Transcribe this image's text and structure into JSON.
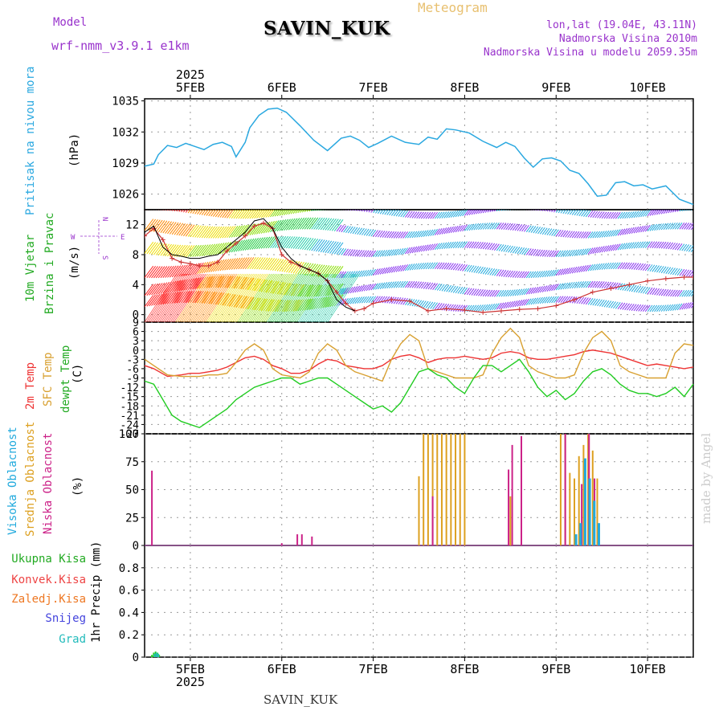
{
  "header": {
    "model_label": "Model",
    "model_name": "wrf-nmm_v3.9.1  e1km",
    "station": "SAVIN_KUK",
    "product": "Meteogram",
    "coords": "lon,lat (19.04E, 43.11N)",
    "elevation": "Nadmorska Visina 2010m",
    "model_elevation": "Nadmorska Visina u modelu 2059.35m",
    "credit": "made by Angel",
    "footer_station": "SAVIN_KUK"
  },
  "colors": {
    "pressure": "#2aa8e0",
    "temp2m": "#ee3333",
    "sfc": "#d8a030",
    "dew": "#22cc22",
    "wind_series": "#cc3333",
    "purple": "#9933cc",
    "high_cloud": "#22aadd",
    "mid_cloud": "#dda020",
    "low_cloud": "#cc2288",
    "conv_rain": "#ee4444",
    "frz_rain": "#ee7722",
    "snow": "#4444dd",
    "graupel": "#22bbbb"
  },
  "chart_data": [
    {
      "type": "line",
      "panel": "pressure",
      "ylabel_lines": [
        "Pritisak na nivou mora",
        "(hPa)"
      ],
      "ylim": [
        1024.5,
        1035.2
      ],
      "yticks": [
        1026,
        1029,
        1032,
        1035
      ],
      "year_label": "2025",
      "x_labels": [
        "5FEB",
        "6FEB",
        "7FEB",
        "8FEB",
        "9FEB",
        "10FEB"
      ],
      "x_range_days": [
        4.5,
        10.5
      ],
      "series": [
        {
          "x": [
            4.5,
            4.6,
            4.65,
            4.75,
            4.85,
            4.95,
            5.05,
            5.15,
            5.25,
            5.35,
            5.45,
            5.5,
            5.6,
            5.65,
            5.75,
            5.85,
            5.95,
            6.05,
            6.2,
            6.35,
            6.5,
            6.65,
            6.75,
            6.85,
            6.95,
            7.05,
            7.2,
            7.35,
            7.5,
            7.6,
            7.7,
            7.8,
            7.9,
            8.05,
            8.2,
            8.35,
            8.45,
            8.55,
            8.65,
            8.75,
            8.85,
            8.95,
            9.05,
            9.15,
            9.25,
            9.35,
            9.45,
            9.55,
            9.65,
            9.75,
            9.85,
            9.95,
            10.05,
            10.2,
            10.35,
            10.5
          ],
          "values": [
            1028.7,
            1028.9,
            1029.8,
            1030.7,
            1030.5,
            1030.9,
            1030.6,
            1030.3,
            1030.8,
            1031.0,
            1030.6,
            1029.6,
            1031.0,
            1032.4,
            1033.6,
            1034.2,
            1034.3,
            1033.9,
            1032.6,
            1031.2,
            1030.2,
            1031.4,
            1031.6,
            1031.2,
            1030.5,
            1030.9,
            1031.6,
            1031.0,
            1030.8,
            1031.5,
            1031.3,
            1032.3,
            1032.2,
            1031.9,
            1031.1,
            1030.5,
            1031.0,
            1030.6,
            1029.5,
            1028.6,
            1029.4,
            1029.5,
            1029.2,
            1028.3,
            1028.0,
            1027.0,
            1025.8,
            1025.9,
            1027.1,
            1027.2,
            1026.8,
            1026.9,
            1026.5,
            1026.8,
            1025.5,
            1025.0
          ]
        }
      ]
    },
    {
      "type": "line",
      "panel": "wind",
      "ylabel_lines": [
        "10m Vjetar",
        "Brzina i Pravac",
        "(m/s)"
      ],
      "compass": {
        "n": "N",
        "w": "W",
        "e": "E",
        "s": "S"
      },
      "ylim": [
        -1,
        14
      ],
      "yticks": [
        0,
        4,
        8,
        12
      ],
      "series": [
        {
          "x": [
            4.5,
            4.6,
            4.7,
            4.8,
            4.9,
            5.0,
            5.1,
            5.2,
            5.3,
            5.4,
            5.5,
            5.6,
            5.7,
            5.8,
            5.9,
            6.0,
            6.1,
            6.2,
            6.3,
            6.4,
            6.5,
            6.6,
            6.7,
            6.8,
            6.9,
            7.0,
            7.2,
            7.4,
            7.6,
            7.8,
            8.0,
            8.2,
            8.4,
            8.6,
            8.8,
            9.0,
            9.2,
            9.4,
            9.6,
            9.8,
            10.0,
            10.2,
            10.4,
            10.5
          ],
          "values": [
            10.5,
            11.5,
            10.0,
            7.5,
            7.0,
            6.8,
            6.5,
            6.5,
            7.0,
            8.5,
            9.5,
            10.5,
            11.8,
            12.2,
            11.5,
            8.0,
            7.0,
            6.5,
            6.0,
            5.5,
            4.5,
            3.0,
            1.5,
            0.5,
            0.8,
            1.5,
            2.0,
            1.8,
            0.5,
            0.8,
            0.6,
            0.3,
            0.5,
            0.7,
            0.8,
            1.2,
            2.0,
            3.0,
            3.5,
            4.0,
            4.5,
            4.8,
            5.0,
            5.0
          ]
        },
        {
          "x": [
            4.5,
            4.6,
            4.7,
            4.8,
            4.9,
            5.0,
            5.1,
            5.2,
            5.3,
            5.4,
            5.5,
            5.6,
            5.7,
            5.8,
            5.9,
            6.0,
            6.1,
            6.2,
            6.3,
            6.4,
            6.5,
            6.6,
            6.7,
            6.8
          ],
          "values": [
            11.0,
            11.8,
            9.0,
            8.0,
            7.8,
            7.5,
            7.5,
            7.8,
            8.0,
            9.0,
            10.0,
            11.0,
            12.5,
            12.8,
            11.5,
            9.0,
            7.5,
            6.5,
            6.0,
            5.5,
            4.5,
            2.0,
            1.0,
            0.5
          ]
        }
      ]
    },
    {
      "type": "line",
      "panel": "temperature",
      "ylabel_lines": [
        "2m Temp",
        "SFC Temp",
        "dewpt Temp",
        "(C)"
      ],
      "ylim": [
        -27,
        9
      ],
      "yticks": [
        9,
        6,
        3,
        0,
        -3,
        -6,
        -9,
        -12,
        -15,
        -18,
        -21,
        -24,
        -27
      ],
      "series": [
        {
          "name": "2m Temp",
          "x": [
            4.5,
            4.6,
            4.75,
            4.9,
            5.0,
            5.1,
            5.2,
            5.3,
            5.4,
            5.5,
            5.6,
            5.7,
            5.8,
            5.9,
            6.0,
            6.1,
            6.2,
            6.3,
            6.4,
            6.5,
            6.6,
            6.7,
            6.8,
            6.9,
            7.0,
            7.1,
            7.2,
            7.3,
            7.4,
            7.5,
            7.6,
            7.7,
            7.8,
            7.9,
            8.0,
            8.1,
            8.2,
            8.3,
            8.4,
            8.5,
            8.6,
            8.7,
            8.8,
            8.9,
            9.0,
            9.1,
            9.2,
            9.3,
            9.4,
            9.5,
            9.6,
            9.7,
            9.8,
            9.9,
            10.0,
            10.1,
            10.2,
            10.3,
            10.4,
            10.5
          ],
          "values": [
            -5,
            -6,
            -8.5,
            -8,
            -7.5,
            -7.5,
            -7,
            -6.5,
            -5.5,
            -4,
            -2.5,
            -2,
            -3,
            -5,
            -6,
            -7.5,
            -7.5,
            -6.5,
            -4.5,
            -3,
            -3.5,
            -5,
            -5.5,
            -6,
            -6,
            -5,
            -3,
            -2,
            -1.5,
            -2.5,
            -4,
            -3,
            -2.5,
            -2.5,
            -2,
            -2.5,
            -3,
            -2.5,
            -1,
            -0.5,
            -1,
            -2.5,
            -3,
            -3,
            -2.5,
            -2,
            -1.5,
            -0.5,
            0,
            -0.5,
            -1,
            -2,
            -3,
            -4,
            -5,
            -4.5,
            -5,
            -5.5,
            -6,
            -5.5
          ]
        },
        {
          "name": "SFC Temp",
          "x": [
            4.5,
            4.6,
            4.75,
            4.9,
            5.0,
            5.1,
            5.2,
            5.3,
            5.4,
            5.5,
            5.6,
            5.7,
            5.8,
            5.9,
            6.0,
            6.1,
            6.2,
            6.3,
            6.4,
            6.5,
            6.6,
            6.7,
            6.8,
            6.9,
            7.0,
            7.1,
            7.2,
            7.3,
            7.4,
            7.5,
            7.6,
            7.7,
            7.8,
            7.9,
            8.0,
            8.1,
            8.2,
            8.3,
            8.4,
            8.5,
            8.6,
            8.7,
            8.8,
            8.9,
            9.0,
            9.1,
            9.2,
            9.3,
            9.4,
            9.5,
            9.6,
            9.7,
            9.8,
            9.9,
            10.0,
            10.1,
            10.2,
            10.3,
            10.4,
            10.5
          ],
          "values": [
            -3,
            -5,
            -8,
            -8.5,
            -8.5,
            -8.5,
            -8,
            -8,
            -7.5,
            -4,
            0,
            2,
            0,
            -6,
            -8,
            -8.5,
            -9,
            -7,
            -1,
            2,
            0,
            -5,
            -7,
            -8,
            -9,
            -10,
            -3,
            2,
            5,
            3,
            -6,
            -7,
            -8,
            -9,
            -9,
            -9,
            -8,
            -1,
            4,
            7,
            4,
            -5,
            -7,
            -8,
            -9,
            -9,
            -8,
            -1,
            4,
            6,
            3,
            -5,
            -7,
            -8,
            -9,
            -9,
            -9,
            -1,
            2,
            1.5
          ]
        },
        {
          "name": "dewpt Temp",
          "x": [
            4.5,
            4.6,
            4.7,
            4.8,
            4.9,
            5.0,
            5.1,
            5.2,
            5.3,
            5.4,
            5.5,
            5.6,
            5.7,
            5.8,
            5.9,
            6.0,
            6.1,
            6.2,
            6.3,
            6.4,
            6.5,
            6.6,
            6.7,
            6.8,
            6.9,
            7.0,
            7.1,
            7.2,
            7.3,
            7.4,
            7.5,
            7.6,
            7.7,
            7.8,
            7.9,
            8.0,
            8.1,
            8.2,
            8.3,
            8.4,
            8.5,
            8.6,
            8.7,
            8.8,
            8.9,
            9.0,
            9.1,
            9.2,
            9.3,
            9.4,
            9.5,
            9.6,
            9.7,
            9.8,
            9.9,
            10.0,
            10.1,
            10.2,
            10.3,
            10.4,
            10.5
          ],
          "values": [
            -10,
            -11,
            -16,
            -21,
            -23,
            -24,
            -25,
            -23,
            -21,
            -19,
            -16,
            -14,
            -12,
            -11,
            -10,
            -9,
            -9,
            -11,
            -10,
            -9,
            -9,
            -11,
            -13,
            -15,
            -17,
            -19,
            -18,
            -20,
            -17,
            -12,
            -7,
            -6,
            -8,
            -9,
            -12,
            -14,
            -9,
            -5,
            -5,
            -7,
            -5,
            -3,
            -7,
            -12,
            -15,
            -13,
            -16,
            -14,
            -10,
            -7,
            -6,
            -8,
            -11,
            -13,
            -14,
            -14,
            -15,
            -14,
            -12,
            -15,
            -11
          ]
        }
      ]
    },
    {
      "type": "bar",
      "panel": "cloud",
      "ylabel_lines": [
        "Visoka Oblacnost",
        "Srednja Oblacnost",
        "Niska Oblacnost",
        "(%)"
      ],
      "ylim": [
        0,
        100
      ],
      "yticks": [
        0,
        25,
        50,
        75,
        100
      ],
      "series": [
        {
          "name": "Visoka Oblacnost",
          "x": [
            9.2,
            9.25,
            9.3,
            9.35,
            9.4,
            9.45
          ],
          "values": [
            10,
            20,
            78,
            60,
            40,
            20
          ]
        },
        {
          "name": "Srednja Oblacnost",
          "x": [
            7.5,
            7.55,
            7.6,
            7.65,
            7.7,
            7.75,
            7.8,
            7.85,
            7.9,
            7.95,
            8.0,
            8.5,
            8.55,
            8.6,
            9.05,
            9.1,
            9.15,
            9.2,
            9.25,
            9.3,
            9.35,
            9.4,
            9.45
          ],
          "values": [
            62,
            100,
            100,
            100,
            100,
            100,
            100,
            100,
            100,
            100,
            100,
            44,
            0,
            0,
            100,
            100,
            65,
            60,
            80,
            90,
            100,
            85,
            60
          ]
        },
        {
          "name": "Niska Oblacnost",
          "x": [
            4.58,
            6.0,
            6.17,
            6.22,
            6.33,
            7.65,
            8.48,
            8.52,
            8.62,
            9.1,
            9.28,
            9.36,
            9.42
          ],
          "values": [
            67,
            2,
            10,
            10,
            8,
            44,
            68,
            90,
            98,
            100,
            55,
            100,
            60
          ]
        }
      ]
    },
    {
      "type": "bar",
      "panel": "precip",
      "ylabel_lines": [
        "1hr Precip (mm)"
      ],
      "legend": [
        "Ukupna  Kisa",
        "Konvek.Kisa",
        "Zaledj.Kisa",
        "Snijeg",
        "Grad"
      ],
      "ylim": [
        0,
        1.0
      ],
      "yticks": [
        0,
        0.2,
        0.4,
        0.6,
        0.8
      ],
      "year_label": "2025",
      "series": [
        {
          "name": "Ukupna  Kisa",
          "x": [
            4.58,
            4.6,
            4.62,
            4.64,
            4.66
          ],
          "values": [
            0.02,
            0.04,
            0.05,
            0.04,
            0.02
          ]
        },
        {
          "name": "Grad",
          "x": [
            4.61,
            4.63,
            4.65
          ],
          "values": [
            0.03,
            0.04,
            0.03
          ]
        }
      ]
    }
  ]
}
